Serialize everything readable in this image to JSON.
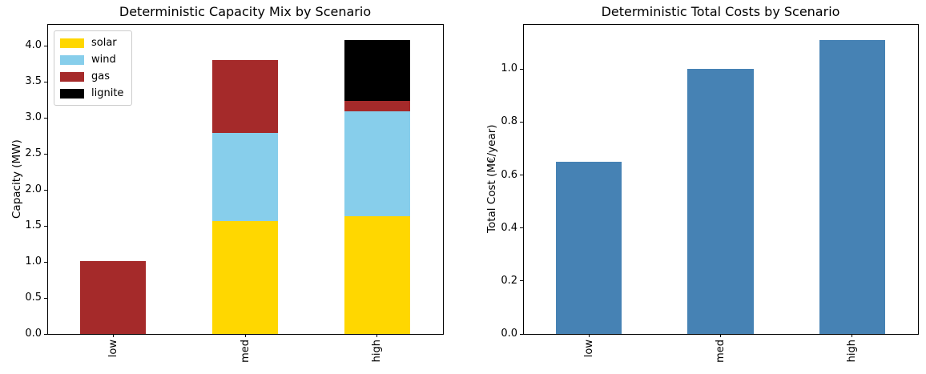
{
  "chart_data": [
    {
      "type": "bar",
      "stacked": true,
      "title": "Deterministic Capacity Mix by Scenario",
      "xlabel": "",
      "ylabel": "Capacity (MW)",
      "categories": [
        "low",
        "med",
        "high"
      ],
      "series": [
        {
          "name": "solar",
          "color": "#FFD700",
          "values": [
            0.0,
            1.57,
            1.63
          ]
        },
        {
          "name": "wind",
          "color": "#87CEEB",
          "values": [
            0.0,
            1.22,
            1.46
          ]
        },
        {
          "name": "gas",
          "color": "#A52A2A",
          "values": [
            1.01,
            1.01,
            0.14
          ]
        },
        {
          "name": "lignite",
          "color": "#000000",
          "values": [
            0.0,
            0.0,
            0.85
          ]
        }
      ],
      "stack_totals": [
        1.01,
        3.8,
        4.08
      ],
      "ylim": [
        0,
        4.3
      ],
      "ytick_labels": [
        "0.0",
        "0.5",
        "1.0",
        "1.5",
        "2.0",
        "2.5",
        "3.0",
        "3.5",
        "4.0"
      ],
      "xtick_rotation": 90,
      "bar_width_fraction": 0.5,
      "grid": false,
      "legend": {
        "position": "upper left",
        "labels": [
          "solar",
          "wind",
          "gas",
          "lignite"
        ]
      }
    },
    {
      "type": "bar",
      "stacked": false,
      "title": "Deterministic Total Costs by Scenario",
      "xlabel": "",
      "ylabel": "Total Cost (M€/year)",
      "categories": [
        "low",
        "med",
        "high"
      ],
      "series": [
        {
          "name": "total_cost",
          "color": "#4682B4",
          "values": [
            0.65,
            1.0,
            1.11
          ]
        }
      ],
      "ylim": [
        0,
        1.17
      ],
      "ytick_labels": [
        "0.0",
        "0.2",
        "0.4",
        "0.6",
        "0.8",
        "1.0"
      ],
      "xtick_rotation": 90,
      "bar_width_fraction": 0.5,
      "grid": false,
      "legend": null
    }
  ]
}
